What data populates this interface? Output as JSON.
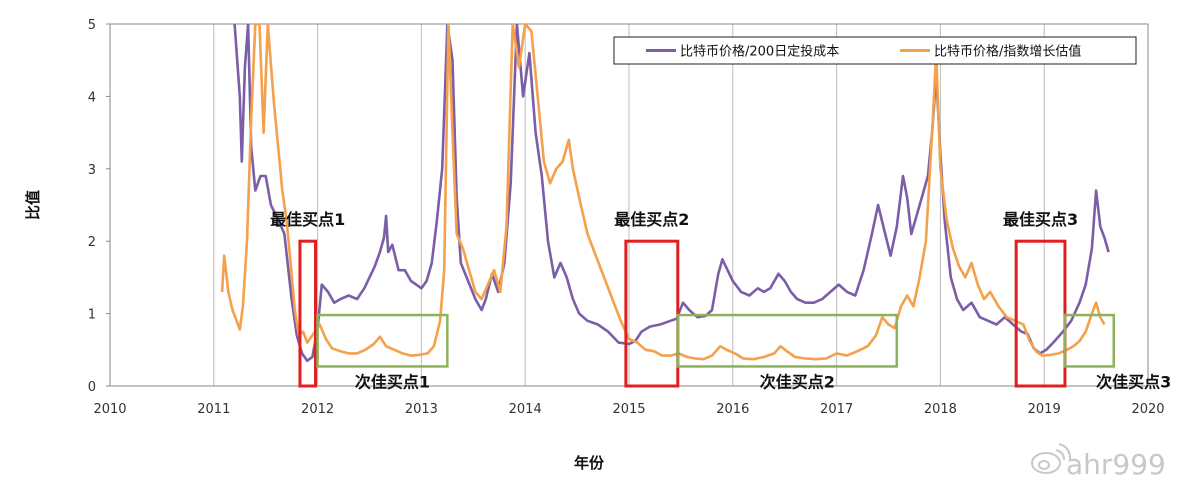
{
  "watermark": "ahr999",
  "chart_data": {
    "type": "line",
    "title": "",
    "xlabel": "年份",
    "ylabel": "比值",
    "xlim": [
      2010,
      2020
    ],
    "ylim": [
      0,
      5
    ],
    "xticks": [
      "2010",
      "2011",
      "2012",
      "2013",
      "2014",
      "2015",
      "2016",
      "2017",
      "2018",
      "2019",
      "2020"
    ],
    "yticks": [
      "0",
      "1",
      "2",
      "3",
      "4",
      "5"
    ],
    "grid": "vertical",
    "legend_position": "top-right",
    "series": [
      {
        "name": "比特币价格/200日定投成本",
        "color": "#7b5ea7",
        "points": [
          [
            2011.2,
            5.0
          ],
          [
            2011.25,
            4.0
          ],
          [
            2011.27,
            3.1
          ],
          [
            2011.3,
            4.4
          ],
          [
            2011.33,
            5.0
          ],
          [
            2011.36,
            3.3
          ],
          [
            2011.4,
            2.7
          ],
          [
            2011.45,
            2.9
          ],
          [
            2011.5,
            2.9
          ],
          [
            2011.55,
            2.5
          ],
          [
            2011.62,
            2.3
          ],
          [
            2011.68,
            2.1
          ],
          [
            2011.75,
            1.2
          ],
          [
            2011.8,
            0.7
          ],
          [
            2011.85,
            0.45
          ],
          [
            2011.9,
            0.35
          ],
          [
            2011.95,
            0.4
          ],
          [
            2012.0,
            0.8
          ],
          [
            2012.04,
            1.4
          ],
          [
            2012.1,
            1.3
          ],
          [
            2012.16,
            1.15
          ],
          [
            2012.22,
            1.2
          ],
          [
            2012.3,
            1.25
          ],
          [
            2012.38,
            1.2
          ],
          [
            2012.45,
            1.35
          ],
          [
            2012.5,
            1.5
          ],
          [
            2012.55,
            1.65
          ],
          [
            2012.6,
            1.85
          ],
          [
            2012.64,
            2.05
          ],
          [
            2012.66,
            2.35
          ],
          [
            2012.68,
            1.85
          ],
          [
            2012.72,
            1.95
          ],
          [
            2012.78,
            1.6
          ],
          [
            2012.84,
            1.6
          ],
          [
            2012.9,
            1.45
          ],
          [
            2012.95,
            1.4
          ],
          [
            2013.0,
            1.35
          ],
          [
            2013.05,
            1.45
          ],
          [
            2013.1,
            1.7
          ],
          [
            2013.15,
            2.3
          ],
          [
            2013.2,
            3.0
          ],
          [
            2013.25,
            5.0
          ],
          [
            2013.3,
            4.5
          ],
          [
            2013.34,
            2.6
          ],
          [
            2013.38,
            1.7
          ],
          [
            2013.45,
            1.45
          ],
          [
            2013.52,
            1.2
          ],
          [
            2013.58,
            1.05
          ],
          [
            2013.62,
            1.2
          ],
          [
            2013.68,
            1.55
          ],
          [
            2013.74,
            1.3
          ],
          [
            2013.8,
            1.7
          ],
          [
            2013.86,
            2.8
          ],
          [
            2013.92,
            5.0
          ],
          [
            2013.98,
            4.0
          ],
          [
            2014.04,
            4.6
          ],
          [
            2014.1,
            3.5
          ],
          [
            2014.16,
            2.9
          ],
          [
            2014.22,
            2.0
          ],
          [
            2014.28,
            1.5
          ],
          [
            2014.34,
            1.7
          ],
          [
            2014.4,
            1.5
          ],
          [
            2014.46,
            1.2
          ],
          [
            2014.52,
            1.0
          ],
          [
            2014.6,
            0.9
          ],
          [
            2014.7,
            0.85
          ],
          [
            2014.8,
            0.75
          ],
          [
            2014.9,
            0.6
          ],
          [
            2015.0,
            0.58
          ],
          [
            2015.06,
            0.62
          ],
          [
            2015.12,
            0.75
          ],
          [
            2015.2,
            0.82
          ],
          [
            2015.3,
            0.85
          ],
          [
            2015.4,
            0.9
          ],
          [
            2015.46,
            0.93
          ],
          [
            2015.52,
            1.15
          ],
          [
            2015.58,
            1.05
          ],
          [
            2015.66,
            0.95
          ],
          [
            2015.74,
            0.97
          ],
          [
            2015.8,
            1.05
          ],
          [
            2015.86,
            1.55
          ],
          [
            2015.9,
            1.75
          ],
          [
            2015.95,
            1.6
          ],
          [
            2016.0,
            1.45
          ],
          [
            2016.08,
            1.3
          ],
          [
            2016.16,
            1.25
          ],
          [
            2016.24,
            1.35
          ],
          [
            2016.3,
            1.3
          ],
          [
            2016.36,
            1.35
          ],
          [
            2016.44,
            1.55
          ],
          [
            2016.5,
            1.45
          ],
          [
            2016.56,
            1.3
          ],
          [
            2016.62,
            1.2
          ],
          [
            2016.7,
            1.15
          ],
          [
            2016.78,
            1.15
          ],
          [
            2016.86,
            1.2
          ],
          [
            2016.94,
            1.3
          ],
          [
            2017.02,
            1.4
          ],
          [
            2017.1,
            1.3
          ],
          [
            2017.18,
            1.25
          ],
          [
            2017.26,
            1.6
          ],
          [
            2017.34,
            2.1
          ],
          [
            2017.4,
            2.5
          ],
          [
            2017.46,
            2.15
          ],
          [
            2017.52,
            1.8
          ],
          [
            2017.58,
            2.2
          ],
          [
            2017.64,
            2.9
          ],
          [
            2017.68,
            2.6
          ],
          [
            2017.72,
            2.1
          ],
          [
            2017.78,
            2.4
          ],
          [
            2017.84,
            2.7
          ],
          [
            2017.88,
            2.9
          ],
          [
            2017.92,
            3.5
          ],
          [
            2017.96,
            4.3
          ],
          [
            2018.0,
            3.2
          ],
          [
            2018.04,
            2.3
          ],
          [
            2018.1,
            1.5
          ],
          [
            2018.16,
            1.2
          ],
          [
            2018.22,
            1.05
          ],
          [
            2018.3,
            1.15
          ],
          [
            2018.38,
            0.95
          ],
          [
            2018.46,
            0.9
          ],
          [
            2018.54,
            0.85
          ],
          [
            2018.62,
            0.95
          ],
          [
            2018.7,
            0.85
          ],
          [
            2018.78,
            0.75
          ],
          [
            2018.84,
            0.72
          ],
          [
            2018.9,
            0.52
          ],
          [
            2018.96,
            0.45
          ],
          [
            2019.02,
            0.5
          ],
          [
            2019.1,
            0.62
          ],
          [
            2019.18,
            0.75
          ],
          [
            2019.26,
            0.9
          ],
          [
            2019.34,
            1.15
          ],
          [
            2019.4,
            1.4
          ],
          [
            2019.46,
            1.9
          ],
          [
            2019.5,
            2.7
          ],
          [
            2019.54,
            2.2
          ],
          [
            2019.58,
            2.05
          ],
          [
            2019.62,
            1.85
          ]
        ]
      },
      {
        "name": "比特币价格/指数增长估值",
        "color": "#f5a04a",
        "points": [
          [
            2011.08,
            1.3
          ],
          [
            2011.1,
            1.8
          ],
          [
            2011.14,
            1.3
          ],
          [
            2011.18,
            1.05
          ],
          [
            2011.22,
            0.9
          ],
          [
            2011.25,
            0.78
          ],
          [
            2011.28,
            1.1
          ],
          [
            2011.32,
            2.0
          ],
          [
            2011.36,
            3.7
          ],
          [
            2011.4,
            5.0
          ],
          [
            2011.44,
            5.0
          ],
          [
            2011.48,
            3.5
          ],
          [
            2011.52,
            5.0
          ],
          [
            2011.58,
            3.9
          ],
          [
            2011.62,
            3.3
          ],
          [
            2011.66,
            2.7
          ],
          [
            2011.7,
            2.3
          ],
          [
            2011.74,
            1.7
          ],
          [
            2011.78,
            1.05
          ],
          [
            2011.82,
            0.7
          ],
          [
            2011.86,
            0.75
          ],
          [
            2011.9,
            0.6
          ],
          [
            2011.96,
            0.72
          ],
          [
            2012.02,
            0.85
          ],
          [
            2012.08,
            0.65
          ],
          [
            2012.14,
            0.52
          ],
          [
            2012.22,
            0.48
          ],
          [
            2012.3,
            0.45
          ],
          [
            2012.38,
            0.45
          ],
          [
            2012.46,
            0.5
          ],
          [
            2012.54,
            0.58
          ],
          [
            2012.6,
            0.68
          ],
          [
            2012.66,
            0.55
          ],
          [
            2012.74,
            0.5
          ],
          [
            2012.82,
            0.45
          ],
          [
            2012.9,
            0.42
          ],
          [
            2012.98,
            0.43
          ],
          [
            2013.06,
            0.45
          ],
          [
            2013.12,
            0.55
          ],
          [
            2013.18,
            0.9
          ],
          [
            2013.22,
            1.6
          ],
          [
            2013.26,
            5.0
          ],
          [
            2013.3,
            3.5
          ],
          [
            2013.34,
            2.1
          ],
          [
            2013.4,
            1.9
          ],
          [
            2013.46,
            1.6
          ],
          [
            2013.52,
            1.3
          ],
          [
            2013.58,
            1.2
          ],
          [
            2013.64,
            1.4
          ],
          [
            2013.7,
            1.6
          ],
          [
            2013.76,
            1.3
          ],
          [
            2013.82,
            2.2
          ],
          [
            2013.88,
            5.0
          ],
          [
            2013.94,
            4.4
          ],
          [
            2014.0,
            5.0
          ],
          [
            2014.06,
            4.9
          ],
          [
            2014.12,
            4.0
          ],
          [
            2014.18,
            3.1
          ],
          [
            2014.24,
            2.8
          ],
          [
            2014.3,
            3.0
          ],
          [
            2014.36,
            3.1
          ],
          [
            2014.42,
            3.4
          ],
          [
            2014.46,
            3.0
          ],
          [
            2014.52,
            2.6
          ],
          [
            2014.6,
            2.1
          ],
          [
            2014.68,
            1.8
          ],
          [
            2014.76,
            1.5
          ],
          [
            2014.84,
            1.2
          ],
          [
            2014.92,
            0.9
          ],
          [
            2015.0,
            0.65
          ],
          [
            2015.08,
            0.6
          ],
          [
            2015.16,
            0.5
          ],
          [
            2015.24,
            0.48
          ],
          [
            2015.32,
            0.42
          ],
          [
            2015.4,
            0.42
          ],
          [
            2015.48,
            0.45
          ],
          [
            2015.56,
            0.4
          ],
          [
            2015.64,
            0.38
          ],
          [
            2015.72,
            0.37
          ],
          [
            2015.8,
            0.42
          ],
          [
            2015.88,
            0.55
          ],
          [
            2015.94,
            0.5
          ],
          [
            2016.02,
            0.45
          ],
          [
            2016.1,
            0.38
          ],
          [
            2016.2,
            0.37
          ],
          [
            2016.3,
            0.4
          ],
          [
            2016.4,
            0.45
          ],
          [
            2016.46,
            0.55
          ],
          [
            2016.52,
            0.48
          ],
          [
            2016.6,
            0.4
          ],
          [
            2016.7,
            0.38
          ],
          [
            2016.8,
            0.37
          ],
          [
            2016.9,
            0.38
          ],
          [
            2017.0,
            0.45
          ],
          [
            2017.1,
            0.42
          ],
          [
            2017.2,
            0.48
          ],
          [
            2017.3,
            0.55
          ],
          [
            2017.38,
            0.7
          ],
          [
            2017.44,
            0.95
          ],
          [
            2017.5,
            0.85
          ],
          [
            2017.56,
            0.8
          ],
          [
            2017.62,
            1.1
          ],
          [
            2017.68,
            1.25
          ],
          [
            2017.74,
            1.1
          ],
          [
            2017.8,
            1.5
          ],
          [
            2017.86,
            2.0
          ],
          [
            2017.92,
            3.5
          ],
          [
            2017.96,
            4.6
          ],
          [
            2018.0,
            3.0
          ],
          [
            2018.06,
            2.3
          ],
          [
            2018.12,
            1.9
          ],
          [
            2018.18,
            1.65
          ],
          [
            2018.24,
            1.5
          ],
          [
            2018.3,
            1.7
          ],
          [
            2018.36,
            1.4
          ],
          [
            2018.42,
            1.2
          ],
          [
            2018.48,
            1.3
          ],
          [
            2018.56,
            1.1
          ],
          [
            2018.64,
            0.95
          ],
          [
            2018.72,
            0.9
          ],
          [
            2018.8,
            0.85
          ],
          [
            2018.86,
            0.62
          ],
          [
            2018.92,
            0.48
          ],
          [
            2018.98,
            0.42
          ],
          [
            2019.06,
            0.43
          ],
          [
            2019.14,
            0.45
          ],
          [
            2019.22,
            0.5
          ],
          [
            2019.28,
            0.55
          ],
          [
            2019.34,
            0.62
          ],
          [
            2019.4,
            0.75
          ],
          [
            2019.46,
            1.0
          ],
          [
            2019.5,
            1.15
          ],
          [
            2019.54,
            0.95
          ],
          [
            2019.58,
            0.85
          ]
        ]
      }
    ],
    "annotations": [
      {
        "label": "最佳买点1",
        "color": "#e02020",
        "x0": 2011.83,
        "x1": 2011.98,
        "y0": 0,
        "y1": 2.0
      },
      {
        "label": "次佳买点1",
        "color": "#8db35a",
        "x0": 2012.0,
        "x1": 2013.25,
        "y0": 0.27,
        "y1": 0.98
      },
      {
        "label": "最佳买点2",
        "color": "#e02020",
        "x0": 2014.97,
        "x1": 2015.47,
        "y0": 0,
        "y1": 2.0
      },
      {
        "label": "次佳买点2",
        "color": "#8db35a",
        "x0": 2015.47,
        "x1": 2017.58,
        "y0": 0.27,
        "y1": 0.98
      },
      {
        "label": "最佳买点3",
        "color": "#e02020",
        "x0": 2018.73,
        "x1": 2019.2,
        "y0": 0,
        "y1": 2.0
      },
      {
        "label": "次佳买点3",
        "color": "#8db35a",
        "x0": 2019.2,
        "x1": 2019.67,
        "y0": 0.27,
        "y1": 0.98
      }
    ]
  }
}
